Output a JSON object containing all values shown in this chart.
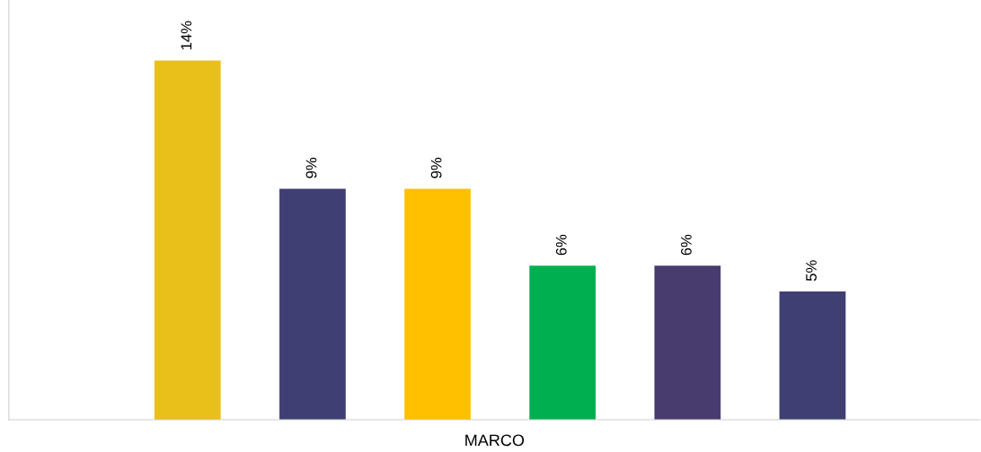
{
  "chart_data": {
    "type": "bar",
    "xlabel": "MARCO",
    "categories": [
      null,
      null,
      null,
      null,
      null,
      null
    ],
    "values": [
      14,
      9,
      9,
      6,
      6,
      5
    ],
    "colors": [
      "#e9bf1a",
      "#3f3f73",
      "#ffc000",
      "#00b050",
      "#473c6d",
      "#3f3f73"
    ],
    "value_labels": [
      "14%",
      "9%",
      "9%",
      "6%",
      "6%",
      "5%"
    ],
    "grid": false,
    "legend": false
  }
}
